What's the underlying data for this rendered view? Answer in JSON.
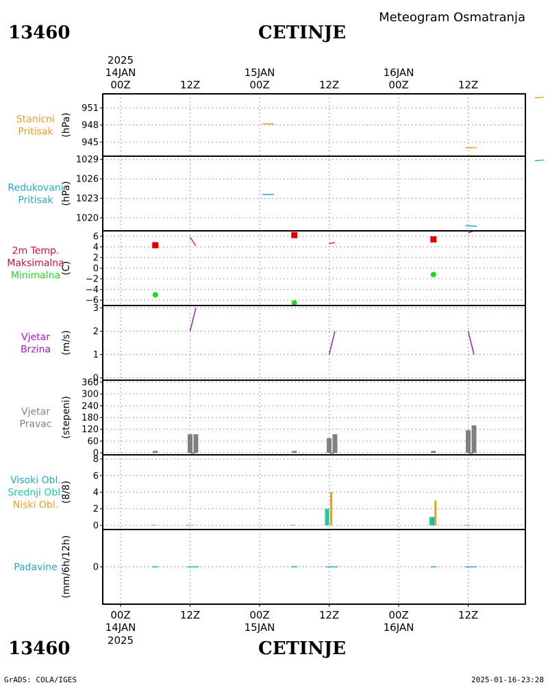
{
  "header": {
    "station_id": "13460",
    "station_name": "CETINJE",
    "meteogram_title": "Meteogram Osmatranja"
  },
  "footer": {
    "station_id": "13460",
    "station_name": "CETINJE",
    "credit": "GrADS: COLA/IGES",
    "timestamp": "2025-01-16-23:28"
  },
  "time_axis": {
    "ticks": [
      "00Z",
      "12Z",
      "00Z",
      "12Z",
      "00Z",
      "12Z"
    ],
    "top_dates": [
      "14JAN",
      "15JAN",
      "16JAN"
    ],
    "top_year": "2025",
    "bottom_dates": [
      "14JAN",
      "15JAN",
      "16JAN"
    ],
    "bottom_year": "2025"
  },
  "colors": {
    "orange": "#e8a020",
    "cyan": "#20a8c8",
    "crimson": "#d0103c",
    "green": "#20d820",
    "purple": "#a018c8",
    "gray": "#808080",
    "teal": "#20c8a0",
    "grid": "#909090"
  },
  "chart_data": [
    {
      "type": "line",
      "panel": "stanicni-pritisak",
      "labels": [
        "Stanicni",
        "Pritisak"
      ],
      "ylabel": "(hPa)",
      "yticks": [
        951,
        948,
        945
      ],
      "ylim": [
        942.5,
        953.5
      ],
      "color": "orange",
      "x_hours": [
        24,
        60,
        24
      ],
      "series": [
        {
          "x": [
            24.5,
            26.5
          ],
          "y": [
            948.2,
            948.2
          ]
        },
        {
          "x": [
            59.5,
            61.5
          ],
          "y": [
            944.0,
            944.0
          ]
        },
        {
          "x": [
            71.5,
            73.0
          ],
          "y": [
            952.8,
            952.9
          ]
        }
      ]
    },
    {
      "type": "line",
      "panel": "redukovani-pritisak",
      "labels": [
        "Redukovani",
        "Pritisak"
      ],
      "ylabel": "(hPa)",
      "yticks": [
        1029,
        1026,
        1023,
        1020
      ],
      "ylim": [
        1018.0,
        1029.5
      ],
      "color": "cyan",
      "series": [
        {
          "x": [
            24.5,
            26.5
          ],
          "y": [
            1023.6,
            1023.6
          ]
        },
        {
          "x": [
            59.5,
            61.5
          ],
          "y": [
            1018.8,
            1018.7
          ]
        },
        {
          "x": [
            71.5,
            73.0
          ],
          "y": [
            1028.8,
            1028.9
          ]
        }
      ]
    },
    {
      "type": "scatter",
      "panel": "temperatura",
      "labels": [
        "2m Temp.",
        "Maksimalna",
        "Minimalna"
      ],
      "label_colors": [
        "crimson",
        "crimson",
        "green"
      ],
      "ylabel": "(C)",
      "yticks": [
        6,
        4,
        2,
        0,
        -2,
        -4,
        -6
      ],
      "ylim": [
        -7.0,
        7.0
      ],
      "series": [
        {
          "name": "Maksimalna",
          "color": "red",
          "x": [
            6,
            30,
            54
          ],
          "y": [
            4.3,
            6.2,
            5.4
          ]
        },
        {
          "name": "Minimalna",
          "color": "green",
          "x": [
            6,
            30,
            54
          ],
          "y": [
            -5.0,
            -6.5,
            -1.2
          ]
        },
        {
          "color": "crimson",
          "x": [
            12,
            13.0
          ],
          "y": [
            5.8,
            4.2
          ]
        },
        {
          "color": "crimson",
          "x": [
            36.0,
            37.0
          ],
          "y": [
            4.6,
            4.8
          ]
        },
        {
          "color": "crimson",
          "x": [
            60.0,
            61.0
          ],
          "y": [
            6.6,
            7.0
          ]
        }
      ]
    },
    {
      "type": "line",
      "panel": "vjetar-brzina",
      "labels": [
        "Vjetar",
        "Brzina"
      ],
      "ylabel": "(m/s)",
      "yticks": [
        3,
        2,
        1,
        0
      ],
      "ylim": [
        -0.1,
        3.1
      ],
      "color": "purple",
      "series": [
        {
          "x": [
            12.0,
            13.0
          ],
          "y": [
            2.0,
            3.0
          ]
        },
        {
          "x": [
            36.0,
            37.0
          ],
          "y": [
            1.0,
            2.0
          ]
        },
        {
          "x": [
            60.0,
            61.0
          ],
          "y": [
            2.0,
            1.0
          ]
        }
      ]
    },
    {
      "type": "bar",
      "panel": "vjetar-pravac",
      "labels": [
        "Vjetar",
        "Pravac"
      ],
      "ylabel": "(stepeni)",
      "yticks": [
        360,
        300,
        240,
        180,
        120,
        60,
        0
      ],
      "ylim": [
        -10,
        370
      ],
      "color": "gray",
      "x": [
        6,
        12,
        13,
        30,
        36,
        37,
        54,
        60,
        61
      ],
      "values": [
        10,
        95,
        95,
        10,
        75,
        95,
        10,
        115,
        140
      ]
    },
    {
      "type": "bar",
      "panel": "oblacnost",
      "labels": [
        "Visoki Obl.",
        "Srednji Obl.",
        "Niski Obl."
      ],
      "label_colors": [
        "cyan",
        "teal",
        "orange"
      ],
      "ylabel": "(8/8)",
      "yticks": [
        8,
        6,
        4,
        2,
        0
      ],
      "ylim": [
        -0.5,
        8.5
      ],
      "series": [
        {
          "name": "Srednji Obl.",
          "color": "teal",
          "x": [
            6,
            12,
            30,
            36,
            54,
            60
          ],
          "values": [
            0.05,
            0.05,
            0.05,
            2.0,
            1.0,
            0.05
          ]
        },
        {
          "name": "Niski Obl.",
          "color": "orange",
          "x": [
            12,
            36,
            54,
            60
          ],
          "values": [
            0.05,
            4.0,
            3.0,
            0.05
          ]
        },
        {
          "name": "Visoki Obl.",
          "color": "cyan",
          "x": [
            54
          ],
          "values": [
            1.0
          ]
        }
      ]
    },
    {
      "type": "line",
      "panel": "padavine",
      "labels": [
        "Padavine"
      ],
      "ylabel": "(mm/6h/12h)",
      "yticks": [
        0
      ],
      "ylim": [
        -5,
        5
      ],
      "color": "cyan",
      "series": [
        {
          "x": [
            5.5,
            6.5
          ],
          "y": [
            0,
            0
          ]
        },
        {
          "x": [
            11.5,
            13.5
          ],
          "y": [
            0,
            0
          ]
        },
        {
          "x": [
            29.5,
            30.5
          ],
          "y": [
            0,
            0
          ]
        },
        {
          "x": [
            35.5,
            37.5
          ],
          "y": [
            0,
            0
          ]
        },
        {
          "x": [
            53.5,
            54.5
          ],
          "y": [
            0,
            0
          ]
        },
        {
          "x": [
            59.5,
            61.5
          ],
          "y": [
            0,
            0
          ]
        }
      ]
    }
  ]
}
